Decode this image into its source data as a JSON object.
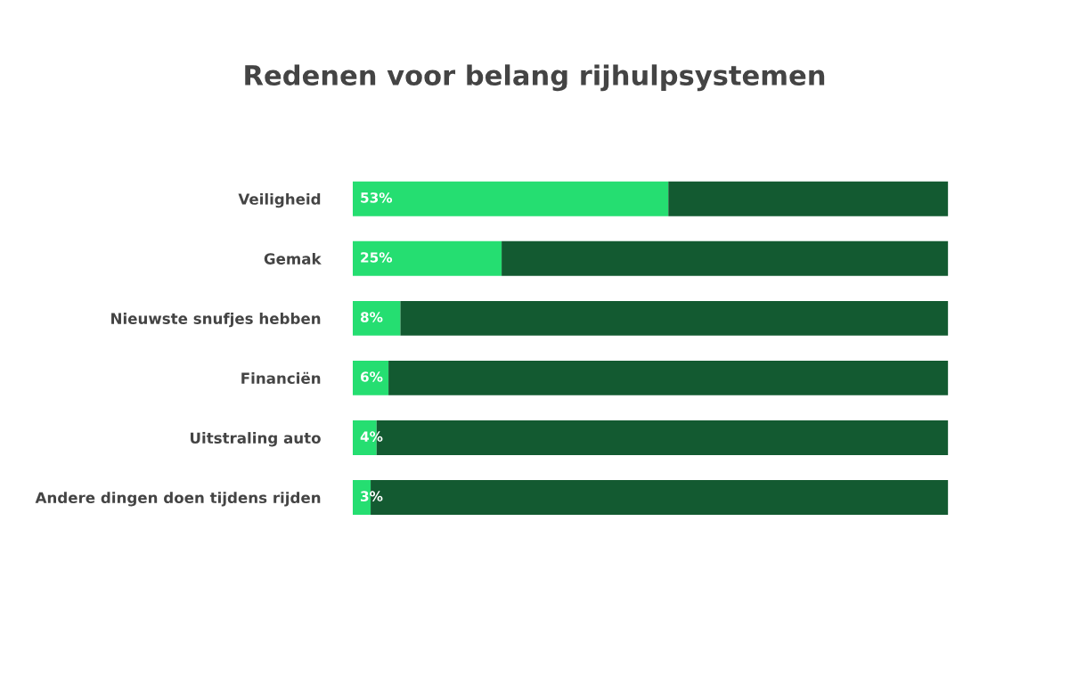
{
  "chart_data": {
    "type": "bar",
    "orientation": "horizontal",
    "stacked": true,
    "title": "Redenen voor belang rijhulpsystemen",
    "categories": [
      "Veiligheid",
      "Gemak",
      "Nieuwste snufjes hebben",
      "Financiën",
      "Uitstraling auto",
      "Andere dingen doen tijdens rijden"
    ],
    "series": [
      {
        "color": "#25de71",
        "values": [
          53,
          25,
          8,
          6,
          4,
          3
        ],
        "value_labels": [
          "53%",
          "25%",
          "8%",
          "6%",
          "4%",
          "3%"
        ]
      },
      {
        "color": "#135a31",
        "values": [
          47,
          75,
          92,
          94,
          96,
          97
        ]
      }
    ],
    "xlim": [
      0,
      100
    ],
    "tick_labels": "y",
    "grid": false,
    "legend": false
  }
}
